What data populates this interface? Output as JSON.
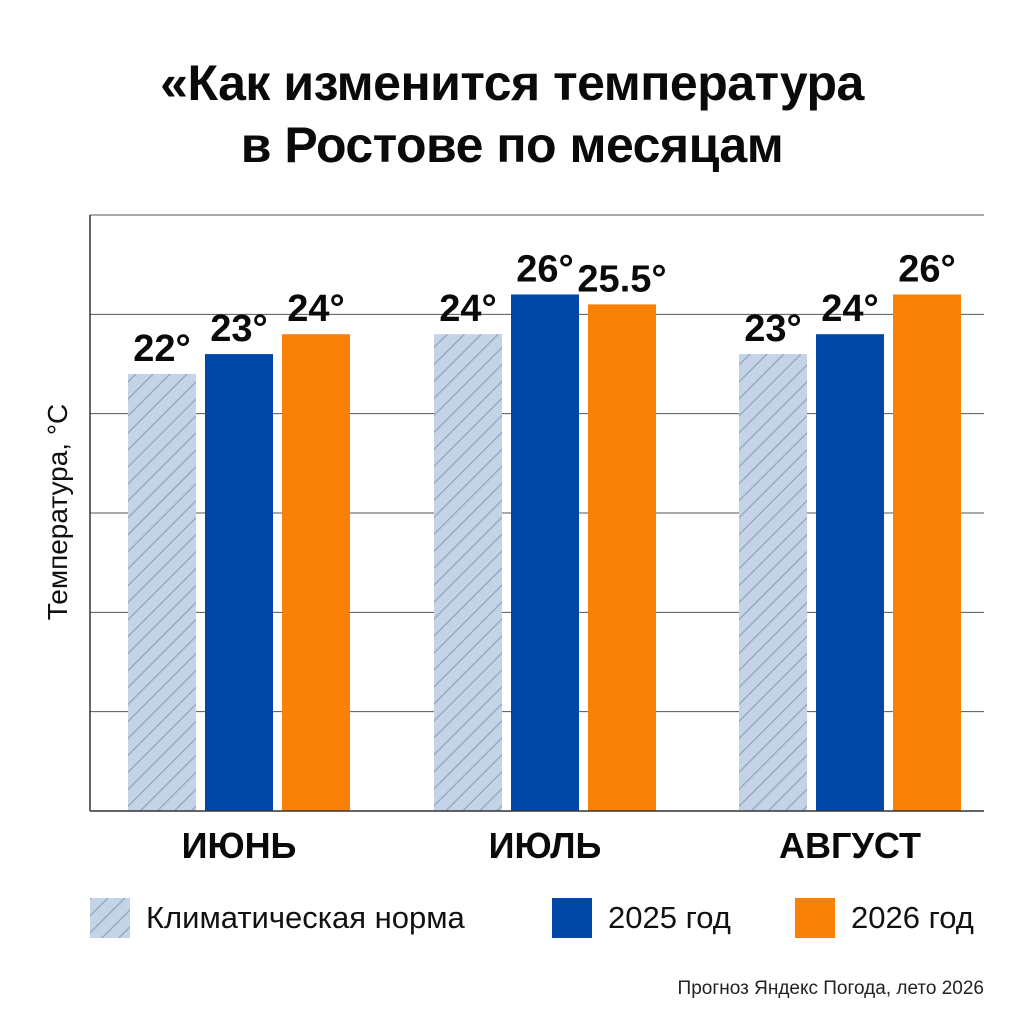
{
  "title_lines": [
    "«Как изменится температура",
    "в Ростове по месяцам"
  ],
  "source": "Прогноз Яндекс Погода, лето 2026",
  "chart_data": {
    "type": "bar",
    "title": "«Как изменится температура в Ростове по месяцам",
    "ylabel": "Температура, °C",
    "xlabel": "",
    "ylim": [
      0,
      30
    ],
    "grid": true,
    "legend_position": "bottom",
    "categories": [
      "ИЮНЬ",
      "ИЮЛЬ",
      "АВГУСТ"
    ],
    "series": [
      {
        "name": "Климатическая норма",
        "values": [
          22,
          24,
          23
        ],
        "labels": [
          "22°",
          "24°",
          "23°"
        ],
        "color": "#c5d3e6",
        "pattern": "diagonal-hatch"
      },
      {
        "name": "2025 год",
        "values": [
          23,
          26,
          24
        ],
        "labels": [
          "23°",
          "26°",
          "24°"
        ],
        "color": "#0047a8"
      },
      {
        "name": "2026 год",
        "values": [
          24,
          25.5,
          26
        ],
        "labels": [
          "24°",
          "25.5°",
          "26°"
        ],
        "color": "#f98107"
      }
    ]
  }
}
